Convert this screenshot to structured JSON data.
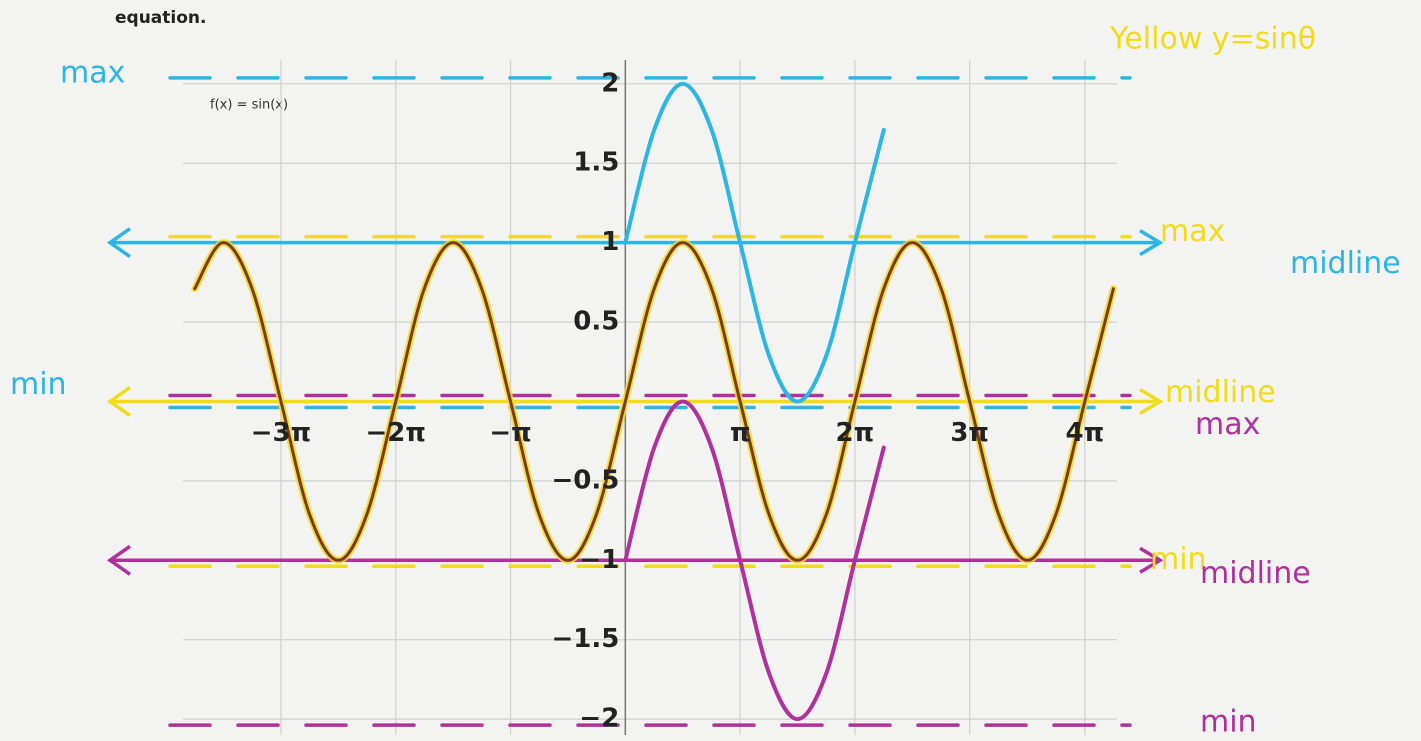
{
  "header": "equation.",
  "chart_data": {
    "type": "line",
    "title": "f(x) = sin(x)",
    "x": [
      -11.78,
      -11.0,
      -10.21,
      -9.42,
      -8.64,
      -7.85,
      -7.07,
      -6.28,
      -5.5,
      -4.71,
      -3.93,
      -3.14,
      -2.36,
      -1.57,
      -0.79,
      0,
      0.79,
      1.57,
      2.36,
      3.14,
      3.93,
      4.71,
      5.5,
      6.28,
      7.07,
      7.85,
      8.64,
      9.42,
      10.21,
      11.0,
      11.78,
      12.57,
      13.35
    ],
    "series": [
      {
        "color": "#f2dc1a",
        "name": "Yellow y=sinθ",
        "values": [
          0.71,
          1,
          0.71,
          0,
          -0.71,
          -1,
          -0.71,
          0,
          0.71,
          1,
          0.71,
          0,
          -0.71,
          -1,
          -0.71,
          0,
          0.71,
          1,
          0.71,
          0,
          -0.71,
          -1,
          -0.71,
          0,
          0.71,
          1,
          0.71,
          0,
          -0.71,
          -1,
          -0.71,
          0,
          0.71
        ]
      },
      {
        "color": "#7a3a2c",
        "values": [
          0.71,
          1,
          0.71,
          0,
          -0.71,
          -1,
          -0.71,
          0,
          0.71,
          1,
          0.71,
          0,
          -0.71,
          -1,
          -0.71,
          0,
          0.71,
          1,
          0.71,
          0,
          -0.71,
          -1,
          -0.71,
          0,
          0.71,
          1,
          0.71,
          0,
          -0.71,
          -1,
          -0.71,
          0,
          0.71
        ]
      },
      {
        "color": "#2cb6e4",
        "values": [
          null,
          null,
          null,
          null,
          null,
          null,
          null,
          null,
          null,
          null,
          null,
          null,
          null,
          null,
          null,
          1,
          1.71,
          2,
          1.71,
          1,
          0.29,
          0,
          0.29,
          1,
          1.71,
          null,
          null,
          null,
          null,
          null,
          null,
          null,
          null
        ]
      },
      {
        "color": "#b0309c",
        "values": [
          null,
          null,
          null,
          null,
          null,
          null,
          null,
          null,
          null,
          null,
          null,
          null,
          null,
          null,
          null,
          -1,
          -0.29,
          0,
          -0.29,
          -1,
          -1.71,
          -2,
          -1.71,
          -1,
          -0.29,
          null,
          null,
          null,
          null,
          null,
          null,
          null,
          null
        ]
      }
    ],
    "reference_lines": [
      {
        "value": 2,
        "color": "#2cb6e4",
        "style": "dashed",
        "label": "max",
        "label_position": "left"
      },
      {
        "value": 1,
        "color": "#2cb6e4",
        "style": "solid",
        "label": "midline",
        "label_position": "right"
      },
      {
        "value": 0,
        "color": "#2cb6e4",
        "style": "dashed",
        "label": "min",
        "label_position": "left"
      },
      {
        "value": 1,
        "color": "#f2dc1a",
        "style": "dashed",
        "label": "max",
        "label_position": "right"
      },
      {
        "value": 0,
        "color": "#f2dc1a",
        "style": "solid",
        "label": "midline",
        "label_position": "right"
      },
      {
        "value": -1,
        "color": "#f2dc1a",
        "style": "dashed",
        "label": "min",
        "label_position": "right"
      },
      {
        "value": 0,
        "color": "#b0309c",
        "style": "dashed",
        "label": "max",
        "label_position": "right"
      },
      {
        "value": -1,
        "color": "#b0309c",
        "style": "solid",
        "label": "midline",
        "label_position": "right"
      },
      {
        "value": -2,
        "color": "#b0309c",
        "style": "dashed",
        "label": "min",
        "label_position": "right"
      }
    ],
    "xlim": [
      -12.1,
      13.45
    ],
    "ylim": [
      -2.1,
      2.15
    ],
    "xticks": [
      {
        "value": -9.42,
        "label": "−3π"
      },
      {
        "value": -6.28,
        "label": "−2π"
      },
      {
        "value": -3.14,
        "label": "−π"
      },
      {
        "value": 3.14,
        "label": "π"
      },
      {
        "value": 6.28,
        "label": "2π"
      },
      {
        "value": 9.42,
        "label": "3π"
      },
      {
        "value": 12.57,
        "label": "4π"
      }
    ],
    "yticks": [
      2,
      1.5,
      1,
      0.5,
      {
        "value": -0.5,
        "label": "−0.5"
      },
      {
        "value": -1,
        "label": "−1"
      },
      {
        "value": -1.5,
        "label": "−1.5"
      },
      {
        "value": -2,
        "label": "−2"
      }
    ],
    "grid": true
  }
}
